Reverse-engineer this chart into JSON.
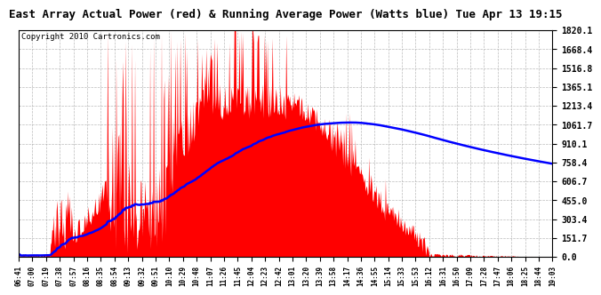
{
  "title": "East Array Actual Power (red) & Running Average Power (Watts blue) Tue Apr 13 19:15",
  "copyright": "Copyright 2010 Cartronics.com",
  "yticks": [
    0.0,
    151.7,
    303.4,
    455.0,
    606.7,
    758.4,
    910.1,
    1061.7,
    1213.4,
    1365.1,
    1516.8,
    1668.4,
    1820.1
  ],
  "ymax": 1820.1,
  "ymin": 0.0,
  "xtick_labels": [
    "06:41",
    "07:00",
    "07:19",
    "07:38",
    "07:57",
    "08:16",
    "08:35",
    "08:54",
    "09:13",
    "09:32",
    "09:51",
    "10:10",
    "10:29",
    "10:48",
    "11:07",
    "11:26",
    "11:45",
    "12:04",
    "12:23",
    "12:42",
    "13:01",
    "13:20",
    "13:39",
    "13:58",
    "14:17",
    "14:36",
    "14:55",
    "15:14",
    "15:33",
    "15:53",
    "16:12",
    "16:31",
    "16:50",
    "17:09",
    "17:28",
    "17:47",
    "18:06",
    "18:25",
    "18:44",
    "19:03"
  ],
  "n_xticks": 40,
  "red_color": "#FF0000",
  "blue_color": "#0000FF",
  "bg_color": "#FFFFFF",
  "grid_color": "#AAAAAA",
  "title_fontsize": 9,
  "copyright_fontsize": 6.5
}
